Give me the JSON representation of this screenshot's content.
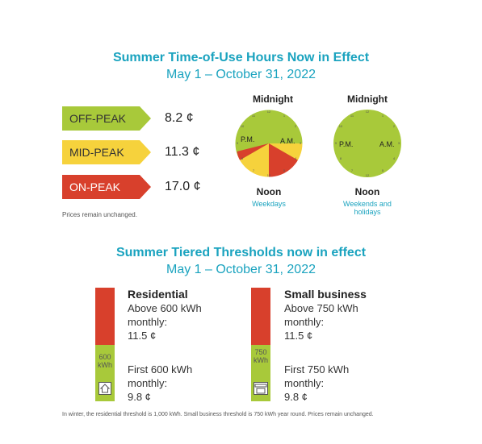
{
  "tou": {
    "title": "Summer Time-of-Use Hours Now in Effect",
    "subtitle": "May 1 – October 31, 2022",
    "rates": [
      {
        "label": "OFF-PEAK",
        "price": "8.2 ¢",
        "color": "#a8c93a"
      },
      {
        "label": "MID-PEAK",
        "price": "11.3 ¢",
        "color": "#f6d23c"
      },
      {
        "label": "ON-PEAK",
        "price": "17.0 ¢",
        "color": "#d8402c"
      }
    ],
    "note": "Prices remain unchanged.",
    "clocks": [
      {
        "top": "Midnight",
        "pm": "P.M.",
        "am": "A.M.",
        "bottom": "Noon",
        "caption": "Weekdays"
      },
      {
        "top": "Midnight",
        "pm": "P.M.",
        "am": "A.M.",
        "bottom": "Noon",
        "caption": "Weekends and holidays"
      }
    ]
  },
  "tiers": {
    "title": "Summer Tiered Thresholds now in effect",
    "subtitle": "May 1 – October 31, 2022",
    "residential": {
      "heading": "Residential",
      "above_line1": "Above 600 kWh",
      "above_line2": "monthly:",
      "above_price": "11.5 ¢",
      "first_line1": "First 600 kWh",
      "first_line2": "monthly:",
      "first_price": "9.8 ¢",
      "bar_label_1": "600",
      "bar_label_2": "kWh",
      "icon": "house-icon"
    },
    "business": {
      "heading": "Small business",
      "above_line1": "Above 750 kWh",
      "above_line2": "monthly:",
      "above_price": "11.5 ¢",
      "first_line1": "First 750 kWh",
      "first_line2": "monthly:",
      "first_price": "9.8 ¢",
      "bar_label_1": "750",
      "bar_label_2": "kWh",
      "icon": "storefront-icon"
    },
    "footnote": "In winter, the residential threshold is 1,000 kWh. Small business threshold is 750 kWh year round. Prices remain unchanged."
  },
  "colors": {
    "accent": "#1aa3bf",
    "green": "#a8c93a",
    "yellow": "#f6d23c",
    "red": "#d8402c"
  }
}
